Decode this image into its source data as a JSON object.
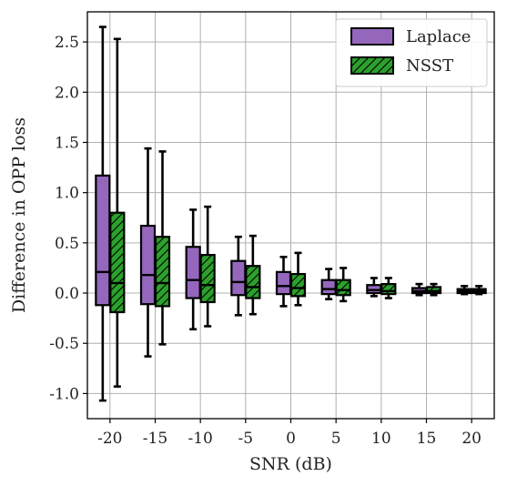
{
  "chart_data": {
    "type": "box",
    "xlabel": "SNR (dB)",
    "ylabel": "Difference in OPP loss",
    "ylim": [
      -1.25,
      2.8
    ],
    "y_ticks": [
      "-1.0",
      "-0.5",
      "0.0",
      "0.5",
      "1.0",
      "1.5",
      "2.0",
      "2.5"
    ],
    "y_tick_values": [
      -1.0,
      -0.5,
      0.0,
      0.5,
      1.0,
      1.5,
      2.0,
      2.5
    ],
    "categories": [
      "-20",
      "-15",
      "-10",
      "-5",
      "0",
      "5",
      "10",
      "15",
      "20"
    ],
    "grid": true,
    "legend_position": "top-right",
    "colors": {
      "Laplace": "#9467bd",
      "NSST": "#2ca02c",
      "edge": "#000000"
    },
    "series": [
      {
        "name": "Laplace",
        "hatch": false,
        "boxes": [
          {
            "whislo": -1.07,
            "q1": -0.12,
            "med": 0.21,
            "q3": 1.17,
            "whishi": 2.65
          },
          {
            "whislo": -0.63,
            "q1": -0.11,
            "med": 0.18,
            "q3": 0.67,
            "whishi": 1.44
          },
          {
            "whislo": -0.36,
            "q1": -0.05,
            "med": 0.13,
            "q3": 0.46,
            "whishi": 0.83
          },
          {
            "whislo": -0.22,
            "q1": -0.02,
            "med": 0.11,
            "q3": 0.32,
            "whishi": 0.56
          },
          {
            "whislo": -0.13,
            "q1": -0.01,
            "med": 0.07,
            "q3": 0.21,
            "whishi": 0.36
          },
          {
            "whislo": -0.06,
            "q1": -0.01,
            "med": 0.04,
            "q3": 0.13,
            "whishi": 0.24
          },
          {
            "whislo": -0.03,
            "q1": 0.0,
            "med": 0.03,
            "q3": 0.08,
            "whishi": 0.15
          },
          {
            "whislo": -0.02,
            "q1": 0.0,
            "med": 0.02,
            "q3": 0.05,
            "whishi": 0.09
          },
          {
            "whislo": -0.01,
            "q1": 0.0,
            "med": 0.02,
            "q3": 0.04,
            "whishi": 0.07
          }
        ]
      },
      {
        "name": "NSST",
        "hatch": true,
        "boxes": [
          {
            "whislo": -0.93,
            "q1": -0.19,
            "med": 0.1,
            "q3": 0.8,
            "whishi": 2.53
          },
          {
            "whislo": -0.51,
            "q1": -0.13,
            "med": 0.1,
            "q3": 0.56,
            "whishi": 1.41
          },
          {
            "whislo": -0.33,
            "q1": -0.09,
            "med": 0.08,
            "q3": 0.38,
            "whishi": 0.86
          },
          {
            "whislo": -0.21,
            "q1": -0.05,
            "med": 0.06,
            "q3": 0.27,
            "whishi": 0.57
          },
          {
            "whislo": -0.12,
            "q1": -0.03,
            "med": 0.05,
            "q3": 0.19,
            "whishi": 0.4
          },
          {
            "whislo": -0.08,
            "q1": -0.02,
            "med": 0.03,
            "q3": 0.13,
            "whishi": 0.25
          },
          {
            "whislo": -0.05,
            "q1": -0.01,
            "med": 0.02,
            "q3": 0.09,
            "whishi": 0.15
          },
          {
            "whislo": -0.02,
            "q1": 0.0,
            "med": 0.02,
            "q3": 0.06,
            "whishi": 0.09
          },
          {
            "whislo": -0.01,
            "q1": 0.0,
            "med": 0.02,
            "q3": 0.04,
            "whishi": 0.07
          }
        ]
      }
    ]
  }
}
